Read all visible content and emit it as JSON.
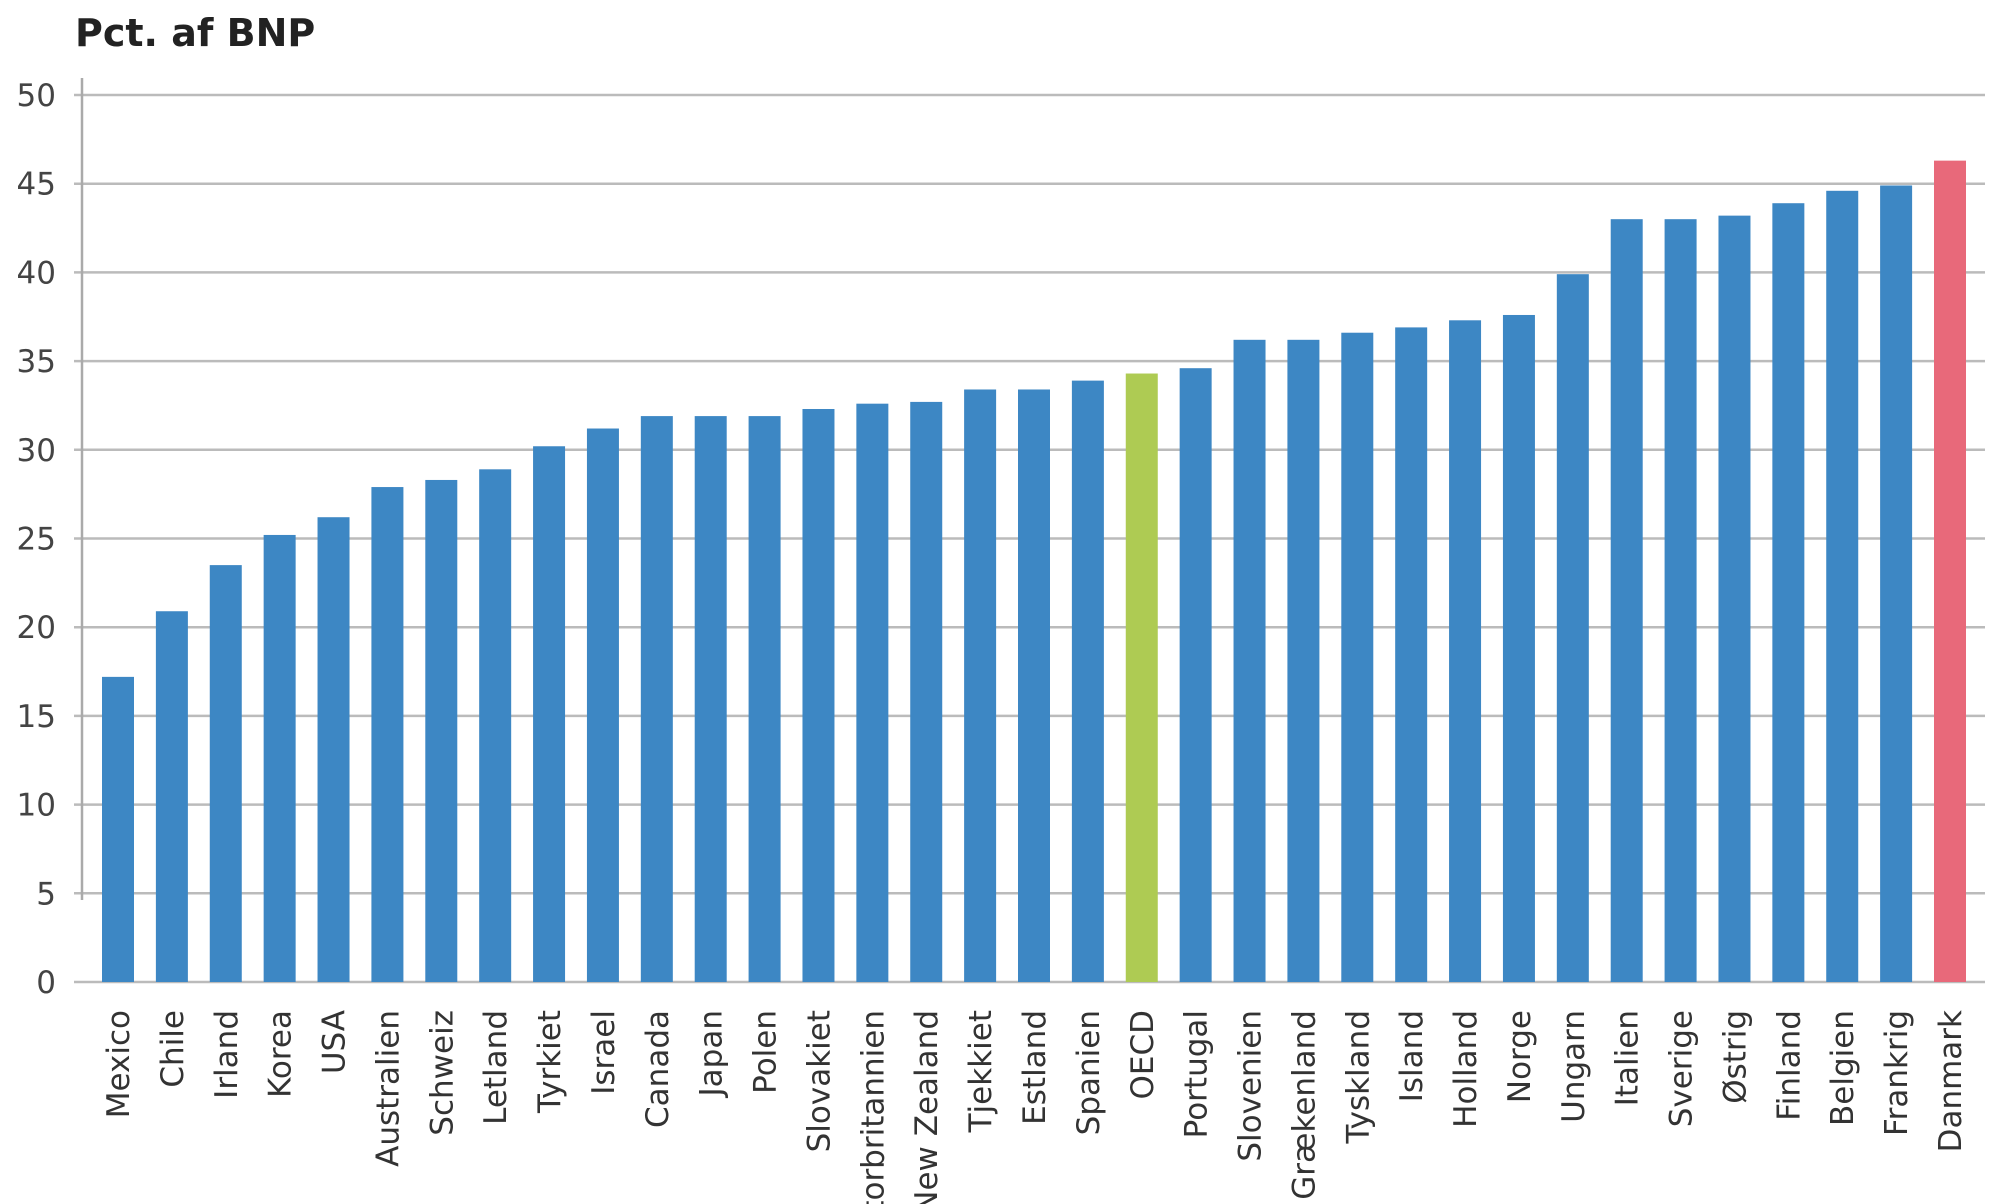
{
  "chart_data": {
    "type": "bar",
    "title": "Pct. af BNP",
    "xlabel": "",
    "ylabel": "",
    "ylim": [
      0,
      50
    ],
    "yticks": [
      0,
      5,
      10,
      15,
      20,
      25,
      30,
      35,
      40,
      45,
      50
    ],
    "grid": true,
    "categories": [
      "Mexico",
      "Chile",
      "Irland",
      "Korea",
      "USA",
      "Australien",
      "Schweiz",
      "Letland",
      "Tyrkiet",
      "Israel",
      "Canada",
      "Japan",
      "Polen",
      "Slovakiet",
      "Storbritannien",
      "New Zealand",
      "Tjekkiet",
      "Estland",
      "Spanien",
      "OECD",
      "Portugal",
      "Slovenien",
      "Grækenland",
      "Tyskland",
      "Island",
      "Holland",
      "Norge",
      "Ungarn",
      "Italien",
      "Sverige",
      "Østrig",
      "Finland",
      "Belgien",
      "Frankrig",
      "Danmark"
    ],
    "values": [
      17.2,
      20.9,
      23.5,
      25.2,
      26.2,
      27.9,
      28.3,
      28.9,
      30.2,
      31.2,
      31.9,
      31.9,
      31.9,
      32.3,
      32.6,
      32.7,
      33.4,
      33.4,
      33.9,
      34.3,
      34.6,
      36.2,
      36.2,
      36.6,
      36.9,
      37.3,
      37.6,
      39.9,
      43.0,
      43.0,
      43.2,
      43.9,
      44.6,
      44.9,
      46.3
    ],
    "colors": {
      "default": "#3d87c4",
      "OECD": "#aecb53",
      "Danmark": "#e8697a"
    }
  }
}
